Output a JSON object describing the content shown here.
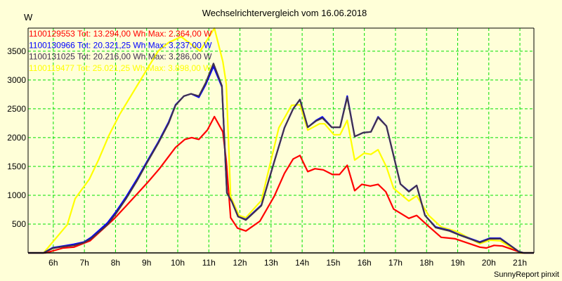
{
  "chart_data": {
    "type": "line",
    "title": "Wechselrichtervergleich vom 16.06.2018",
    "ylabel": "W",
    "xlabel": "",
    "footer": "SunnyReport pinxit",
    "xlim": [
      5.19,
      21.45
    ],
    "ylim": [
      0,
      3900
    ],
    "grid": true,
    "legend_position": "top-left",
    "x_ticks": [
      6,
      7,
      8,
      9,
      10,
      11,
      12,
      13,
      14,
      15,
      16,
      17,
      18,
      19,
      20,
      21
    ],
    "x_tick_labels": [
      "6h",
      "7h",
      "8h",
      "9h",
      "10h",
      "11h",
      "12h",
      "13h",
      "14h",
      "15h",
      "16h",
      "17h",
      "18h",
      "19h",
      "20h",
      "21h"
    ],
    "y_ticks": [
      500,
      1000,
      1500,
      2000,
      2500,
      3000,
      3500
    ],
    "y_tick_labels": [
      "500",
      "1000",
      "1500",
      "2000",
      "2500",
      "3000",
      "3500"
    ],
    "series": [
      {
        "name": "1100119477",
        "legend": "1100119477 Tot: 25.021,25 Wh Max: 3.898,00 W",
        "color": "#FFFF00",
        "points": [
          [
            5.19,
            0
          ],
          [
            5.69,
            0
          ],
          [
            6.03,
            220
          ],
          [
            6.45,
            490
          ],
          [
            6.7,
            940
          ],
          [
            7.16,
            1280
          ],
          [
            7.45,
            1610
          ],
          [
            7.79,
            2040
          ],
          [
            8.13,
            2400
          ],
          [
            8.58,
            2800
          ],
          [
            9.03,
            3200
          ],
          [
            9.37,
            3500
          ],
          [
            9.71,
            3650
          ],
          [
            10.11,
            3750
          ],
          [
            10.72,
            3500
          ],
          [
            11.18,
            3898
          ],
          [
            11.45,
            3320
          ],
          [
            11.56,
            2930
          ],
          [
            11.7,
            975
          ],
          [
            11.97,
            650
          ],
          [
            12.19,
            610
          ],
          [
            12.69,
            910
          ],
          [
            13.25,
            2170
          ],
          [
            13.66,
            2560
          ],
          [
            13.93,
            2570
          ],
          [
            14.18,
            2130
          ],
          [
            14.56,
            2240
          ],
          [
            14.72,
            2240
          ],
          [
            15.02,
            2050
          ],
          [
            15.22,
            2050
          ],
          [
            15.45,
            2300
          ],
          [
            15.69,
            1610
          ],
          [
            15.99,
            1730
          ],
          [
            16.21,
            1710
          ],
          [
            16.44,
            1790
          ],
          [
            16.71,
            1490
          ],
          [
            16.94,
            1120
          ],
          [
            17.43,
            900
          ],
          [
            17.68,
            990
          ],
          [
            18.07,
            650
          ],
          [
            18.47,
            450
          ],
          [
            18.97,
            370
          ],
          [
            19.71,
            160
          ],
          [
            20.03,
            220
          ],
          [
            20.37,
            210
          ],
          [
            21.0,
            0
          ],
          [
            21.45,
            0
          ]
        ]
      },
      {
        "name": "1100129553",
        "legend": "1100129553 Tot: 13.294,00 Wh Max: 2.364,00 W",
        "color": "#FF0000",
        "points": [
          [
            5.19,
            0
          ],
          [
            5.75,
            0
          ],
          [
            6.32,
            85
          ],
          [
            6.66,
            100
          ],
          [
            7.18,
            210
          ],
          [
            7.67,
            450
          ],
          [
            7.97,
            600
          ],
          [
            8.35,
            820
          ],
          [
            9.03,
            1220
          ],
          [
            9.41,
            1460
          ],
          [
            9.93,
            1830
          ],
          [
            10.23,
            1970
          ],
          [
            10.45,
            2000
          ],
          [
            10.68,
            1970
          ],
          [
            10.95,
            2130
          ],
          [
            11.18,
            2364
          ],
          [
            11.45,
            2100
          ],
          [
            11.56,
            1590
          ],
          [
            11.7,
            610
          ],
          [
            11.92,
            430
          ],
          [
            12.19,
            380
          ],
          [
            12.64,
            550
          ],
          [
            13.1,
            980
          ],
          [
            13.43,
            1380
          ],
          [
            13.71,
            1630
          ],
          [
            13.93,
            1690
          ],
          [
            14.18,
            1410
          ],
          [
            14.41,
            1460
          ],
          [
            14.68,
            1440
          ],
          [
            14.97,
            1360
          ],
          [
            15.2,
            1360
          ],
          [
            15.45,
            1520
          ],
          [
            15.69,
            1080
          ],
          [
            15.92,
            1190
          ],
          [
            16.19,
            1160
          ],
          [
            16.44,
            1190
          ],
          [
            16.69,
            1060
          ],
          [
            16.94,
            760
          ],
          [
            17.43,
            600
          ],
          [
            17.68,
            650
          ],
          [
            18.07,
            460
          ],
          [
            18.47,
            270
          ],
          [
            18.92,
            245
          ],
          [
            19.71,
            100
          ],
          [
            19.92,
            85
          ],
          [
            20.17,
            130
          ],
          [
            20.44,
            120
          ],
          [
            21.07,
            0
          ],
          [
            21.45,
            0
          ]
        ]
      },
      {
        "name": "1100130966",
        "legend": "1100130966 Tot: 20.321,25 Wh Max: 3.237,00 W",
        "color": "#0000FF",
        "points": [
          [
            5.19,
            0
          ],
          [
            5.69,
            0
          ],
          [
            5.98,
            90
          ],
          [
            6.32,
            120
          ],
          [
            6.66,
            150
          ],
          [
            6.99,
            190
          ],
          [
            7.22,
            270
          ],
          [
            7.74,
            520
          ],
          [
            8.01,
            710
          ],
          [
            8.35,
            980
          ],
          [
            8.69,
            1280
          ],
          [
            9.03,
            1600
          ],
          [
            9.37,
            1920
          ],
          [
            9.71,
            2270
          ],
          [
            9.93,
            2570
          ],
          [
            10.2,
            2720
          ],
          [
            10.43,
            2760
          ],
          [
            10.68,
            2700
          ],
          [
            10.9,
            2920
          ],
          [
            11.15,
            3237
          ],
          [
            11.42,
            2880
          ],
          [
            11.58,
            1040
          ],
          [
            11.74,
            890
          ],
          [
            11.94,
            630
          ],
          [
            12.19,
            580
          ],
          [
            12.69,
            830
          ],
          [
            13.1,
            1580
          ],
          [
            13.43,
            2170
          ],
          [
            13.71,
            2500
          ],
          [
            13.93,
            2660
          ],
          [
            14.18,
            2180
          ],
          [
            14.45,
            2300
          ],
          [
            14.65,
            2360
          ],
          [
            14.95,
            2180
          ],
          [
            15.22,
            2180
          ],
          [
            15.45,
            2720
          ],
          [
            15.69,
            2020
          ],
          [
            15.96,
            2085
          ],
          [
            16.21,
            2100
          ],
          [
            16.44,
            2360
          ],
          [
            16.71,
            2200
          ],
          [
            17.16,
            1195
          ],
          [
            17.43,
            1070
          ],
          [
            17.68,
            1170
          ],
          [
            17.95,
            650
          ],
          [
            18.29,
            450
          ],
          [
            18.74,
            390
          ],
          [
            19.08,
            310
          ],
          [
            19.71,
            190
          ],
          [
            20.03,
            255
          ],
          [
            20.37,
            255
          ],
          [
            20.96,
            25
          ],
          [
            21.12,
            0
          ],
          [
            21.45,
            0
          ]
        ]
      },
      {
        "name": "1100131025",
        "legend": "1100131025 Tot: 20.216,00 Wh Max: 3.286,00 W",
        "color": "#403050",
        "points": [
          [
            5.19,
            0
          ],
          [
            5.69,
            0
          ],
          [
            5.98,
            80
          ],
          [
            6.32,
            110
          ],
          [
            6.66,
            130
          ],
          [
            6.99,
            180
          ],
          [
            7.22,
            250
          ],
          [
            7.74,
            490
          ],
          [
            8.01,
            680
          ],
          [
            8.35,
            950
          ],
          [
            8.69,
            1250
          ],
          [
            9.03,
            1580
          ],
          [
            9.37,
            1900
          ],
          [
            9.71,
            2250
          ],
          [
            9.93,
            2560
          ],
          [
            10.2,
            2720
          ],
          [
            10.43,
            2760
          ],
          [
            10.68,
            2720
          ],
          [
            10.9,
            2950
          ],
          [
            11.15,
            3286
          ],
          [
            11.42,
            2900
          ],
          [
            11.58,
            1040
          ],
          [
            11.74,
            890
          ],
          [
            11.94,
            630
          ],
          [
            12.19,
            570
          ],
          [
            12.69,
            820
          ],
          [
            13.1,
            1580
          ],
          [
            13.43,
            2170
          ],
          [
            13.71,
            2500
          ],
          [
            13.93,
            2660
          ],
          [
            14.18,
            2180
          ],
          [
            14.45,
            2290
          ],
          [
            14.65,
            2340
          ],
          [
            14.95,
            2180
          ],
          [
            15.22,
            2180
          ],
          [
            15.45,
            2700
          ],
          [
            15.69,
            2020
          ],
          [
            15.96,
            2085
          ],
          [
            16.21,
            2100
          ],
          [
            16.44,
            2350
          ],
          [
            16.71,
            2200
          ],
          [
            17.16,
            1195
          ],
          [
            17.43,
            1060
          ],
          [
            17.68,
            1170
          ],
          [
            17.95,
            650
          ],
          [
            18.29,
            440
          ],
          [
            18.74,
            380
          ],
          [
            19.08,
            305
          ],
          [
            19.71,
            180
          ],
          [
            20.03,
            245
          ],
          [
            20.37,
            245
          ],
          [
            20.96,
            25
          ],
          [
            21.12,
            0
          ],
          [
            21.45,
            0
          ]
        ]
      }
    ],
    "legend_order": [
      "1100129553",
      "1100130966",
      "1100131025",
      "1100119477"
    ]
  },
  "colors": {
    "background": "#FFFFD8",
    "grid": "#00E000",
    "axis": "#000000"
  }
}
